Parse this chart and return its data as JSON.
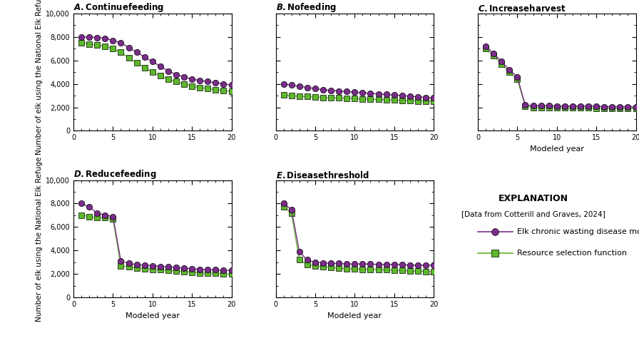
{
  "panels": {
    "A": {
      "title_italic": "A.",
      "title_rest": " Continue feeding",
      "cwd": [
        8000,
        8000,
        7950,
        7900,
        7700,
        7500,
        7100,
        6700,
        6300,
        5900,
        5500,
        5100,
        4800,
        4600,
        4400,
        4300,
        4200,
        4100,
        4000,
        3900
      ],
      "rsf": [
        7500,
        7400,
        7300,
        7200,
        7000,
        6700,
        6200,
        5800,
        5400,
        5000,
        4700,
        4400,
        4200,
        4000,
        3800,
        3700,
        3600,
        3500,
        3450,
        3350
      ]
    },
    "B": {
      "title_italic": "B.",
      "title_rest": " No feeding",
      "cwd": [
        4000,
        3900,
        3800,
        3700,
        3600,
        3500,
        3450,
        3400,
        3350,
        3300,
        3250,
        3200,
        3150,
        3100,
        3050,
        3000,
        2950,
        2900,
        2850,
        2800
      ],
      "rsf": [
        3050,
        2980,
        2950,
        2920,
        2880,
        2850,
        2820,
        2800,
        2780,
        2750,
        2720,
        2700,
        2680,
        2650,
        2620,
        2600,
        2570,
        2550,
        2520,
        2500
      ]
    },
    "C": {
      "title_italic": "C.",
      "title_rest": " Increase harvest",
      "cwd": [
        7200,
        6600,
        5900,
        5200,
        4600,
        2200,
        2150,
        2150,
        2150,
        2100,
        2100,
        2100,
        2100,
        2100,
        2100,
        2050,
        2050,
        2050,
        2050,
        2050
      ],
      "rsf": [
        7000,
        6400,
        5700,
        5000,
        4400,
        2100,
        2000,
        2000,
        2000,
        1950,
        1950,
        1950,
        1950,
        1950,
        1900,
        1900,
        1900,
        1900,
        1900,
        1900
      ]
    },
    "D": {
      "title_italic": "D.",
      "title_rest": " Reduce feeding",
      "cwd": [
        8000,
        7700,
        7200,
        7000,
        6900,
        3100,
        2900,
        2800,
        2750,
        2700,
        2650,
        2600,
        2550,
        2500,
        2450,
        2400,
        2350,
        2350,
        2300,
        2300
      ],
      "rsf": [
        7000,
        6900,
        6800,
        6800,
        6700,
        2700,
        2600,
        2500,
        2450,
        2400,
        2350,
        2300,
        2250,
        2200,
        2150,
        2100,
        2050,
        2050,
        2000,
        2000
      ]
    },
    "E": {
      "title_italic": "E.",
      "title_rest": " Disease threshold",
      "cwd": [
        8000,
        7500,
        3900,
        3200,
        3000,
        2950,
        2900,
        2900,
        2850,
        2850,
        2850,
        2850,
        2800,
        2800,
        2800,
        2800,
        2750,
        2750,
        2750,
        2750
      ],
      "rsf": [
        7700,
        7200,
        3200,
        2800,
        2700,
        2600,
        2550,
        2500,
        2450,
        2450,
        2400,
        2400,
        2350,
        2350,
        2300,
        2300,
        2250,
        2250,
        2200,
        2200
      ]
    }
  },
  "x": [
    1,
    2,
    3,
    4,
    5,
    6,
    7,
    8,
    9,
    10,
    11,
    12,
    13,
    14,
    15,
    16,
    17,
    18,
    19,
    20
  ],
  "xlim": [
    0,
    20
  ],
  "xticks": [
    0,
    5,
    10,
    15,
    20
  ],
  "ylim": [
    0,
    10000
  ],
  "yticks": [
    0,
    2000,
    4000,
    6000,
    8000,
    10000
  ],
  "cwd_color": "#7B2D8B",
  "rsf_color": "#5DB82B",
  "ylabel": "Number of elk using the National Elk Refuge",
  "xlabel": "Modeled year",
  "explanation_title": "EXPLANATION",
  "explanation_sub": "[Data from Cotterill and Graves, 2024]",
  "legend_cwd": "Elk chronic wasting disease model",
  "legend_rsf": "Resource selection function",
  "markersize": 6,
  "linewidth": 1.0
}
